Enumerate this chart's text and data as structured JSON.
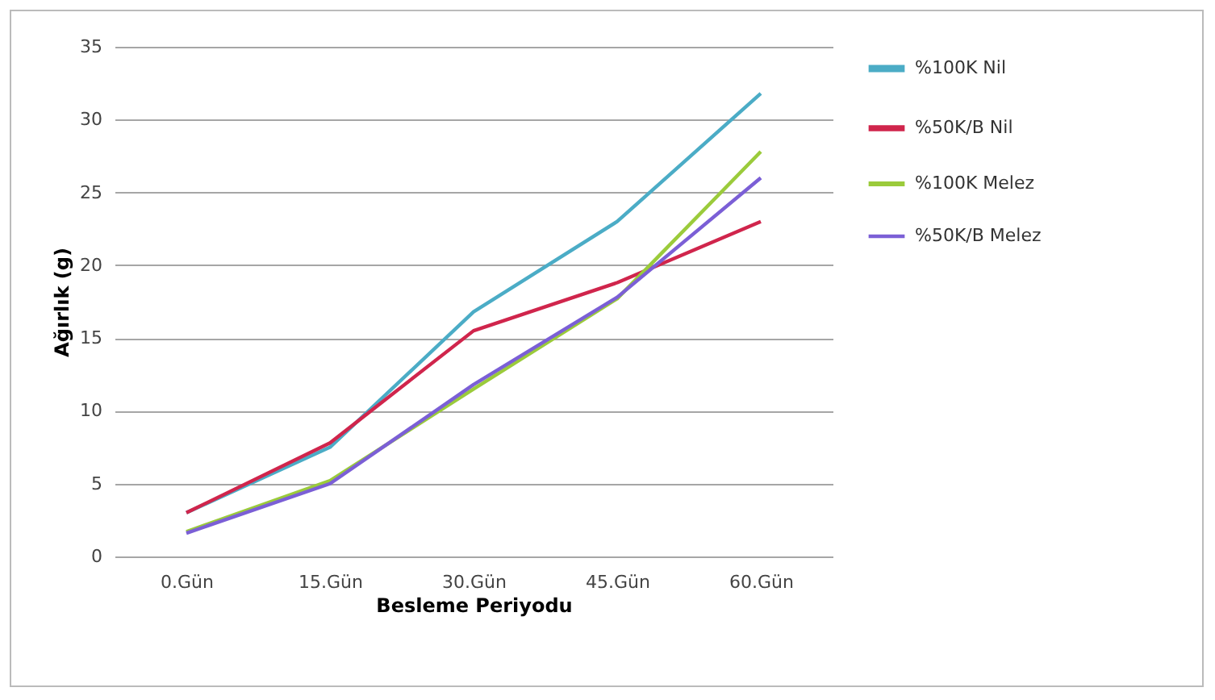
{
  "chart_data": {
    "type": "line",
    "xlabel": "Besleme Periyodu",
    "ylabel": "Ağırlık (g)",
    "categories": [
      "0.Gün",
      "15.Gün",
      "30.Gün",
      "45.Gün",
      "60.Gün"
    ],
    "series": [
      {
        "name": "%100K Nil",
        "color": "#4bacc6",
        "values": [
          3,
          7.5,
          16.8,
          23,
          31.8
        ]
      },
      {
        "name": "%50K/B Nil",
        "color": "#d0254c",
        "values": [
          3,
          7.8,
          15.5,
          18.8,
          23
        ]
      },
      {
        "name": "%100K Melez",
        "color": "#9bcb3b",
        "values": [
          1.7,
          5.2,
          11.5,
          17.7,
          27.8
        ]
      },
      {
        "name": "%50K/B Melez",
        "color": "#7b5fd6",
        "values": [
          1.6,
          5,
          11.8,
          17.8,
          26
        ]
      }
    ],
    "ylim": [
      0,
      35
    ],
    "yticks": [
      0,
      5,
      10,
      15,
      20,
      25,
      30,
      35
    ],
    "grid": "y",
    "legend": "right",
    "marker": "none",
    "line_style": "solid"
  }
}
